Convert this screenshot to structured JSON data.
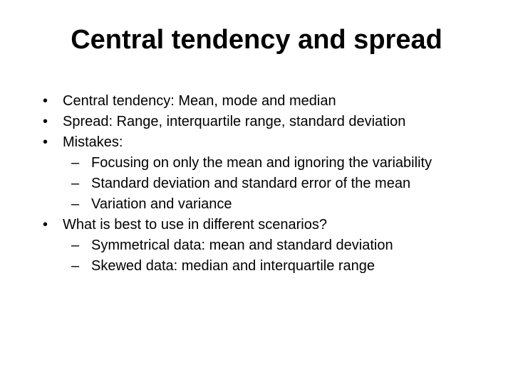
{
  "title": "Central tendency and spread",
  "bullets": {
    "b1": "Central tendency: Mean, mode and median",
    "b2": "Spread: Range, interquartile range, standard deviation",
    "b3": "Mistakes:",
    "b3_1": "Focusing on only the mean and ignoring the variability",
    "b3_2": "Standard deviation and standard error of the mean",
    "b3_3": "Variation and variance",
    "b4": "What is best to use in different scenarios?",
    "b4_1": "Symmetrical data: mean and standard deviation",
    "b4_2": "Skewed data: median and interquartile range"
  },
  "style": {
    "background_color": "#ffffff",
    "text_color": "#000000",
    "title_fontsize": 38,
    "body_fontsize": 20,
    "font_family": "Arial"
  }
}
